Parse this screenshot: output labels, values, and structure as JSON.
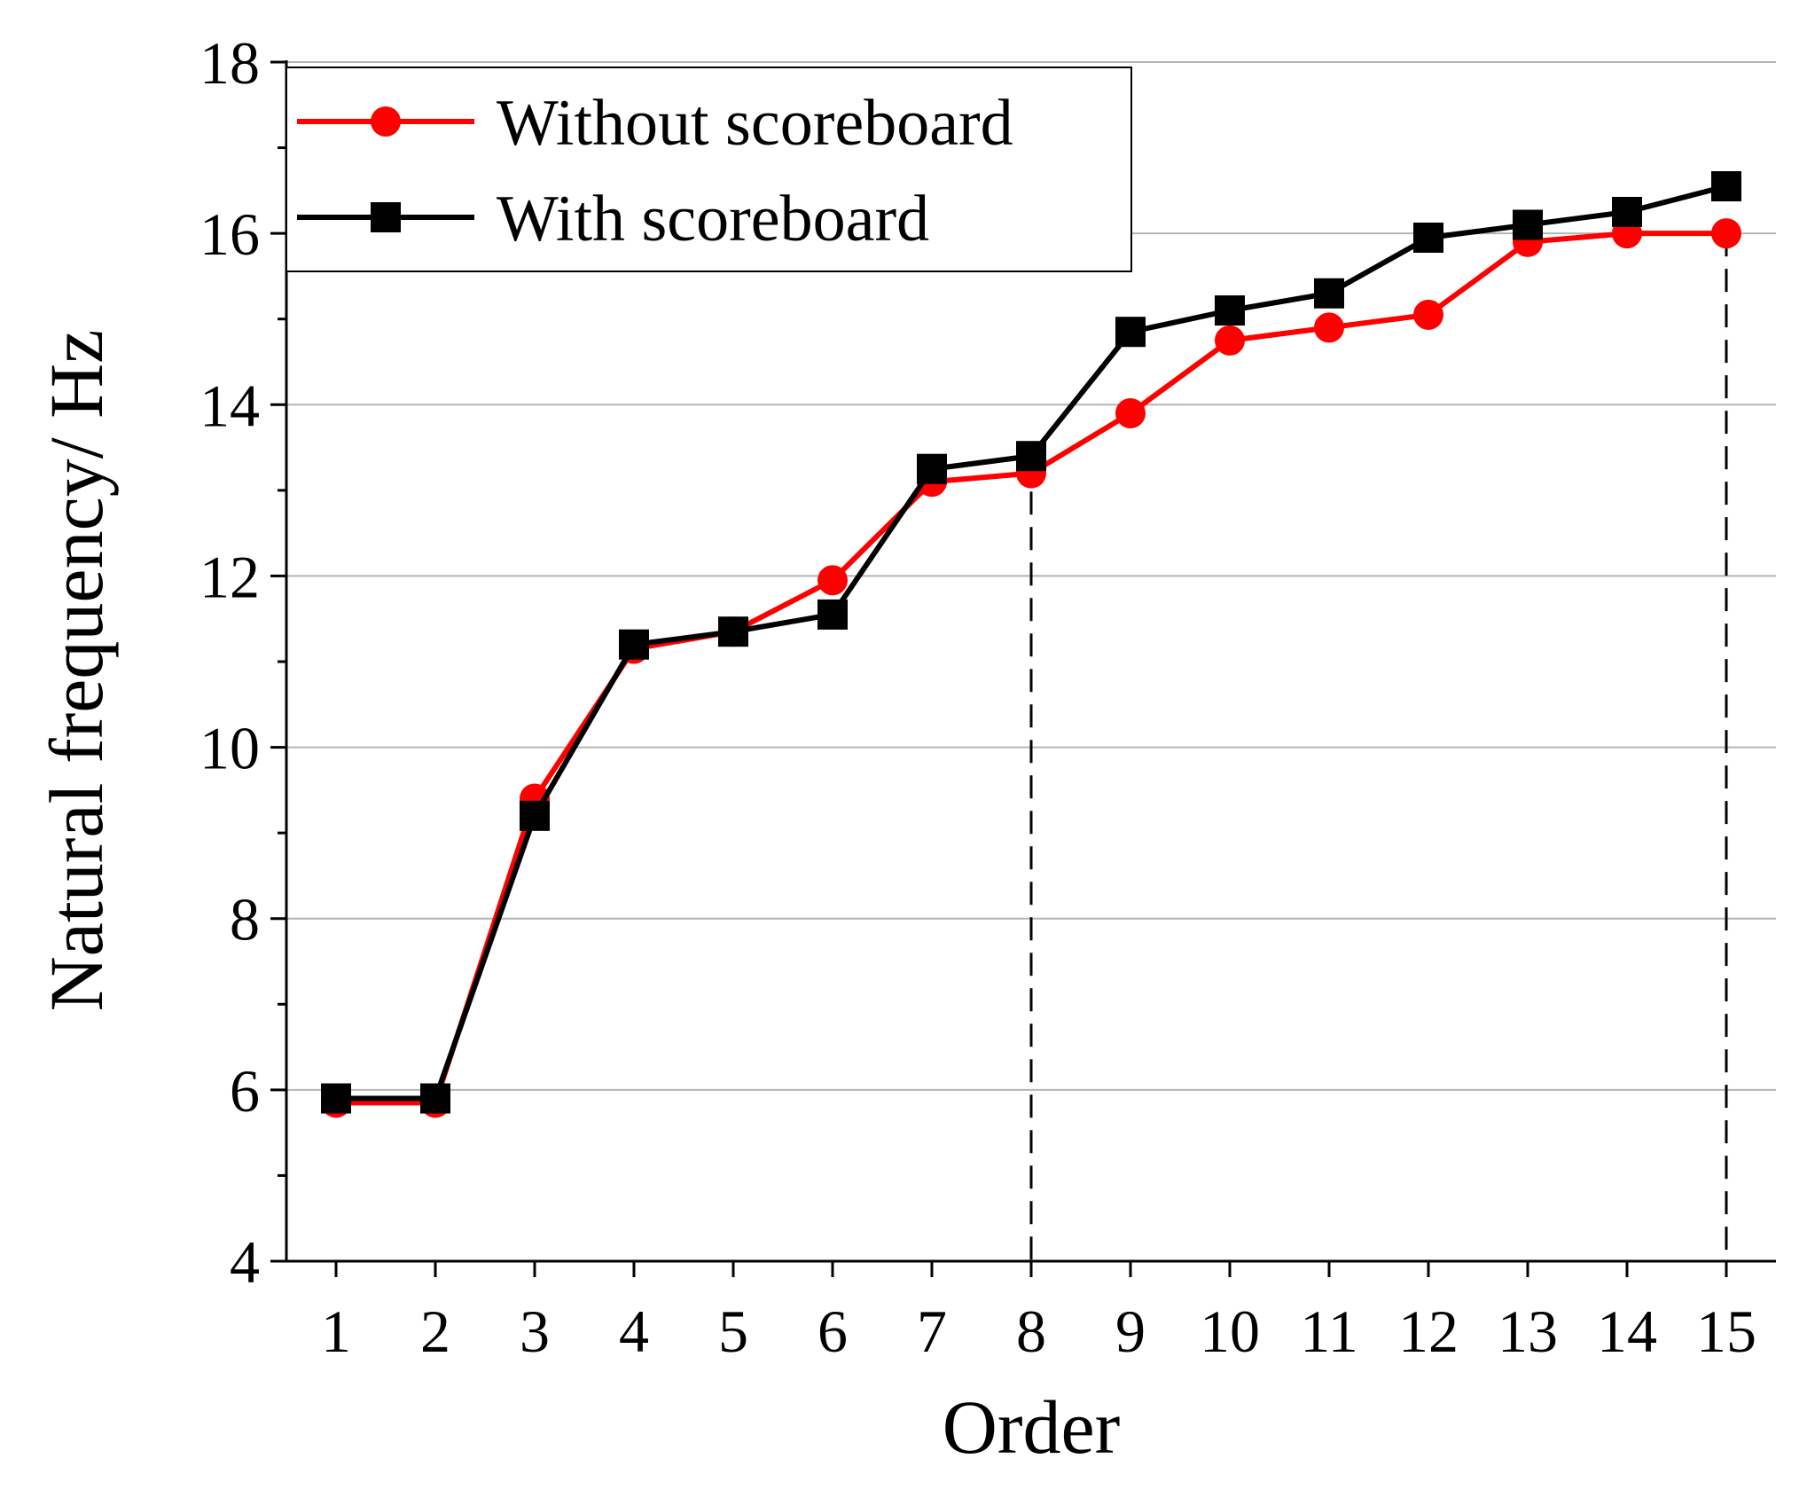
{
  "chart_data": {
    "type": "line",
    "title": "",
    "xlabel": "Order",
    "ylabel": "Natural frequency/ Hz",
    "x": [
      1,
      2,
      3,
      4,
      5,
      6,
      7,
      8,
      9,
      10,
      11,
      12,
      13,
      14,
      15
    ],
    "xlim": [
      0.5,
      15.5
    ],
    "ylim": [
      4,
      18
    ],
    "yticks": [
      4,
      6,
      8,
      10,
      12,
      14,
      16,
      18
    ],
    "grid": "horizontal",
    "legend_position": "top-left",
    "series": [
      {
        "name": "Without scoreboard",
        "color": "#ff0000",
        "marker": "circle",
        "values": [
          5.85,
          5.85,
          9.4,
          11.15,
          11.35,
          11.95,
          13.1,
          13.2,
          13.9,
          14.75,
          14.9,
          15.05,
          15.9,
          16.0,
          16.0
        ]
      },
      {
        "name": "With scoreboard",
        "color": "#000000",
        "marker": "square",
        "values": [
          5.9,
          5.9,
          9.2,
          11.2,
          11.35,
          11.55,
          13.25,
          13.4,
          14.85,
          15.1,
          15.3,
          15.95,
          16.1,
          16.25,
          16.55
        ]
      }
    ],
    "reference_lines": [
      {
        "x": 8,
        "y": 13.4,
        "style": "dashed"
      },
      {
        "x": 15,
        "y": 16.0,
        "style": "dashed"
      }
    ]
  }
}
